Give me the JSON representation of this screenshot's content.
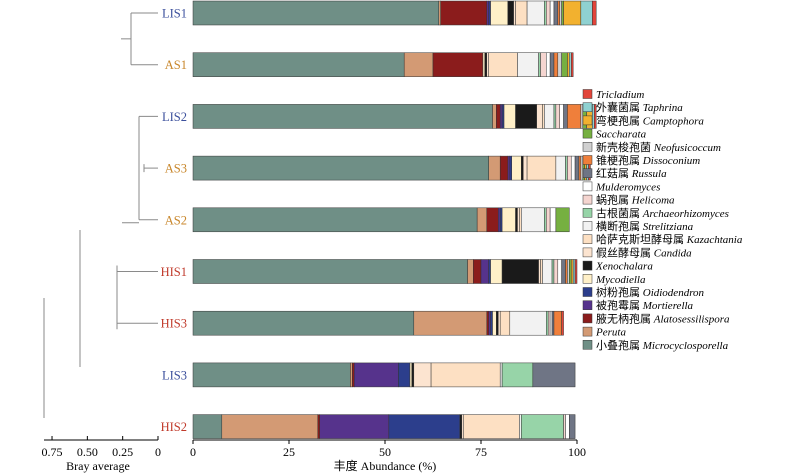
{
  "chart_data": {
    "type": "bar",
    "orientation": "horizontal",
    "stacked": true,
    "samples": [
      "LIS1",
      "AS1",
      "LIS2",
      "AS3",
      "AS2",
      "HIS1",
      "HIS3",
      "LIS3",
      "HIS2"
    ],
    "sample_colors": {
      "LIS1": "#3b4f9c",
      "AS1": "#c8862a",
      "LIS2": "#3b4f9c",
      "AS3": "#c8862a",
      "AS2": "#c8862a",
      "HIS1": "#c03a2b",
      "HIS3": "#c03a2b",
      "LIS3": "#3b4f9c",
      "HIS2": "#c03a2b"
    },
    "xlabel": "丰度 Abundance (%)",
    "xlim": [
      0,
      100
    ],
    "xticks": [
      "0",
      "25",
      "50",
      "75",
      "100"
    ],
    "dendrogram": {
      "xlabel": "Bray average",
      "xticks": [
        "0.75",
        "0.50",
        "0.25",
        "0"
      ]
    },
    "legend_position": "right",
    "series": [
      {
        "cn": "",
        "name": "Tricladium",
        "color": "#e2453a",
        "values": [
          1.0,
          0.5,
          0.5,
          0.5,
          0.0,
          0.5,
          0.5,
          0.0,
          0.0
        ]
      },
      {
        "cn": "外囊菌属",
        "name": "Taphrina",
        "color": "#8fd1d1",
        "values": [
          3.0,
          0.5,
          0.5,
          0.5,
          0.0,
          0.5,
          0.0,
          0.0,
          0.0
        ]
      },
      {
        "cn": "弯梗孢属",
        "name": "Camptophora",
        "color": "#f2b12f",
        "values": [
          4.5,
          0.5,
          1.5,
          0.5,
          0.0,
          0.5,
          0.0,
          0.0,
          0.0
        ]
      },
      {
        "cn": "",
        "name": "Saccharata",
        "color": "#76b041",
        "values": [
          0.5,
          1.5,
          1.0,
          0.5,
          3.5,
          0.5,
          0.0,
          0.0,
          0.0
        ]
      },
      {
        "cn": "新壳梭孢菌",
        "name": "Neofusicoccum",
        "color": "#d0d0d0",
        "values": [
          0.5,
          1.0,
          0.5,
          0.5,
          0.0,
          0.5,
          0.0,
          0.0,
          0.0
        ]
      },
      {
        "cn": "锥梗孢属",
        "name": "Dissoconium",
        "color": "#ef7f3b",
        "values": [
          0.5,
          1.0,
          3.5,
          0.5,
          0.0,
          0.5,
          2.0,
          0.0,
          0.0
        ]
      },
      {
        "cn": "红菇属",
        "name": "Russula",
        "color": "#6f7585",
        "values": [
          1.0,
          1.0,
          1.0,
          1.0,
          0.0,
          1.0,
          0.5,
          11.0,
          1.5
        ]
      },
      {
        "cn": "",
        "name": "Mulderomyces",
        "color": "#ffffff",
        "values": [
          1.0,
          1.0,
          1.0,
          1.0,
          1.5,
          1.0,
          0.5,
          0.0,
          1.0
        ]
      },
      {
        "cn": "蜗孢属",
        "name": "Helicoma",
        "color": "#f5d5d0",
        "values": [
          1.0,
          1.5,
          1.0,
          1.0,
          1.0,
          1.0,
          0.5,
          0.0,
          0.5
        ]
      },
      {
        "cn": "古根菌属",
        "name": "Archaeorhizomyces",
        "color": "#97d4a8",
        "values": [
          0.5,
          0.5,
          0.5,
          0.5,
          0.5,
          0.5,
          0.5,
          8.0,
          11.0
        ]
      },
      {
        "cn": "横断孢属",
        "name": "Strelitziana",
        "color": "#f2f2f2",
        "values": [
          4.5,
          5.5,
          2.5,
          2.5,
          6.0,
          2.5,
          9.5,
          0.5,
          0.5
        ]
      },
      {
        "cn": "哈萨克斯坦酵母属",
        "name": "Kazachtania",
        "color": "#fde0c3",
        "values": [
          3.0,
          7.5,
          0.5,
          7.5,
          0.5,
          0.5,
          2.5,
          18.0,
          14.5
        ]
      },
      {
        "cn": "假丝酵母属",
        "name": "Candida",
        "color": "#fce4d0",
        "values": [
          0.5,
          0.5,
          1.5,
          1.0,
          0.5,
          0.5,
          0.5,
          4.5,
          0.5
        ]
      },
      {
        "cn": "",
        "name": "Xenochalara",
        "color": "#1a1a1a",
        "values": [
          1.5,
          0.5,
          5.5,
          0.5,
          0.5,
          9.5,
          0.5,
          0.5,
          0.5
        ]
      },
      {
        "cn": "",
        "name": "Mycodiella",
        "color": "#fff0c8",
        "values": [
          4.5,
          0.5,
          3.0,
          2.5,
          3.5,
          3.0,
          1.0,
          0.5,
          0.0
        ]
      },
      {
        "cn": "树粉孢属",
        "name": "Oidiodendron",
        "color": "#2c3e8c",
        "values": [
          0.5,
          0.0,
          0.5,
          0.5,
          0.5,
          0.5,
          0.5,
          3.0,
          18.5
        ]
      },
      {
        "cn": "被孢霉属",
        "name": "Mortierella",
        "color": "#56338c",
        "values": [
          0.5,
          0.0,
          0.5,
          0.5,
          0.5,
          2.0,
          0.5,
          11.5,
          18.0
        ]
      },
      {
        "cn": "腋无柄孢属",
        "name": "Alatosessilispora",
        "color": "#8b1c1c",
        "values": [
          12.0,
          13.0,
          1.0,
          2.0,
          3.0,
          2.0,
          0.5,
          0.5,
          0.5
        ]
      },
      {
        "cn": "",
        "name": "Peruta",
        "color": "#d39a74",
        "values": [
          0.5,
          7.5,
          1.0,
          3.0,
          2.5,
          1.5,
          19.0,
          0.5,
          25.0
        ]
      },
      {
        "cn": "小叠孢属",
        "name": "Microcyclosporella",
        "color": "#6f8f86",
        "values": [
          64.0,
          55.0,
          78.0,
          77.0,
          74.0,
          71.5,
          57.5,
          41.0,
          7.5
        ]
      }
    ]
  }
}
